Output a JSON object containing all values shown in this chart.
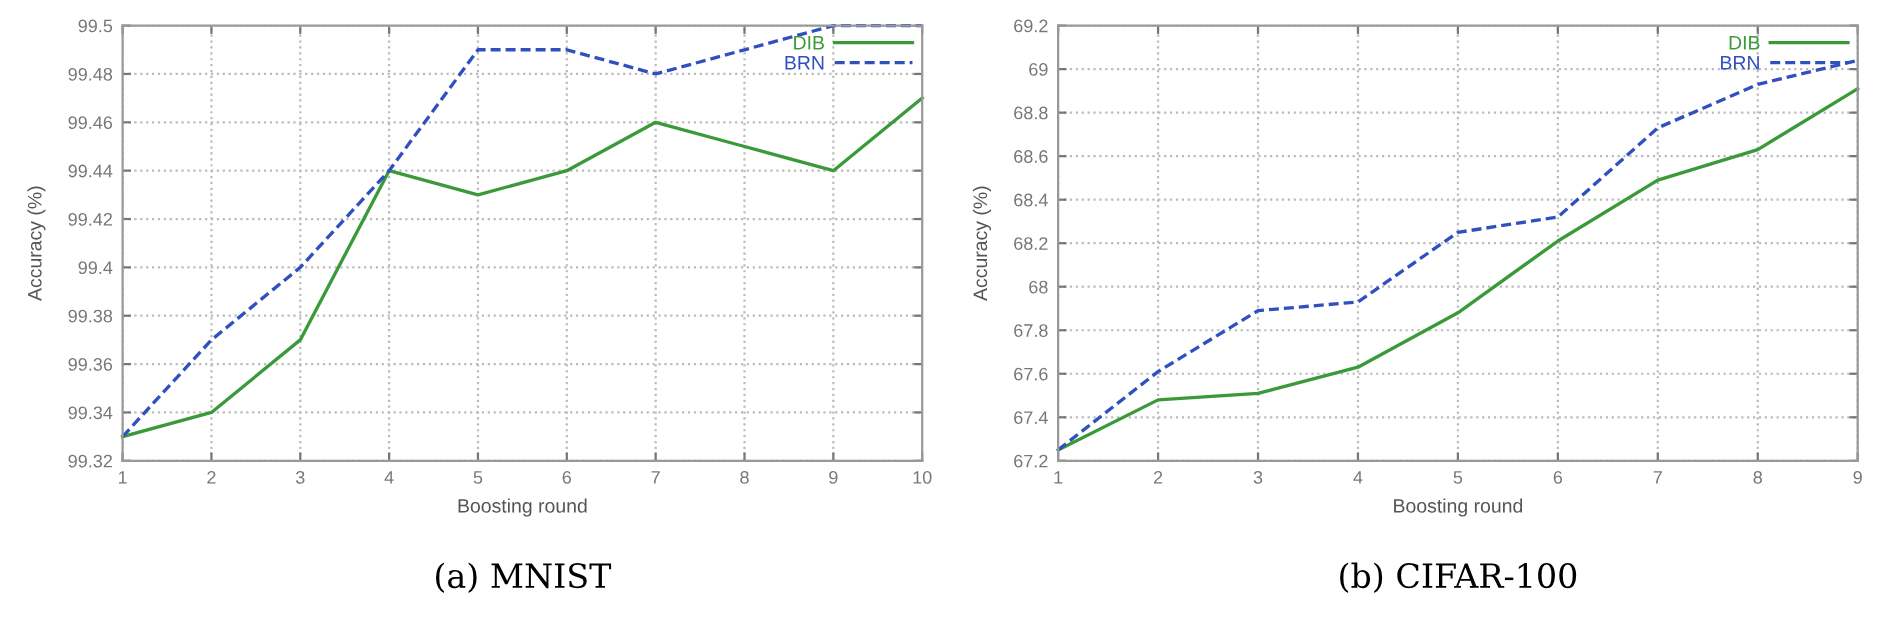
{
  "chart_data": [
    {
      "type": "line",
      "title": "(a) MNIST",
      "xlabel": "Boosting round",
      "ylabel": "Accuracy (%)",
      "x": [
        1,
        2,
        3,
        4,
        5,
        6,
        7,
        8,
        9,
        10
      ],
      "series": [
        {
          "name": "DIB",
          "color": "#3a9a3a",
          "line_style": "solid",
          "values": [
            99.33,
            99.34,
            99.37,
            99.44,
            99.43,
            99.44,
            99.46,
            99.45,
            99.44,
            99.47
          ]
        },
        {
          "name": "BRN",
          "color": "#3050c0",
          "line_style": "dashed",
          "values": [
            99.33,
            99.37,
            99.4,
            99.44,
            99.49,
            99.49,
            99.48,
            99.49,
            99.5,
            99.5
          ]
        }
      ],
      "xlim": [
        1,
        10
      ],
      "xticks": [
        1,
        2,
        3,
        4,
        5,
        6,
        7,
        8,
        9,
        10
      ],
      "ylim": [
        99.32,
        99.5
      ],
      "yticks": [
        99.32,
        99.34,
        99.36,
        99.38,
        99.4,
        99.42,
        99.44,
        99.46,
        99.48,
        99.5
      ],
      "grid": true,
      "legend": "top right",
      "marker": "none"
    },
    {
      "type": "line",
      "title": "(b) CIFAR-100",
      "xlabel": "Boosting round",
      "ylabel": "Accuracy (%)",
      "x": [
        1,
        2,
        3,
        4,
        5,
        6,
        7,
        8,
        9
      ],
      "series": [
        {
          "name": "DIB",
          "color": "#3a9a3a",
          "line_style": "solid",
          "values": [
            67.25,
            67.48,
            67.51,
            67.63,
            67.88,
            68.21,
            68.49,
            68.63,
            68.91
          ]
        },
        {
          "name": "BRN",
          "color": "#3050c0",
          "line_style": "dashed",
          "values": [
            67.25,
            67.61,
            67.89,
            67.93,
            68.25,
            68.32,
            68.73,
            68.93,
            69.04
          ]
        }
      ],
      "xlim": [
        1,
        9
      ],
      "xticks": [
        1,
        2,
        3,
        4,
        5,
        6,
        7,
        8,
        9
      ],
      "ylim": [
        67.2,
        69.2
      ],
      "yticks": [
        67.2,
        67.4,
        67.6,
        67.8,
        68,
        68.2,
        68.4,
        68.6,
        68.8,
        69,
        69.2
      ],
      "grid": true,
      "legend": "top right",
      "marker": "none"
    }
  ]
}
